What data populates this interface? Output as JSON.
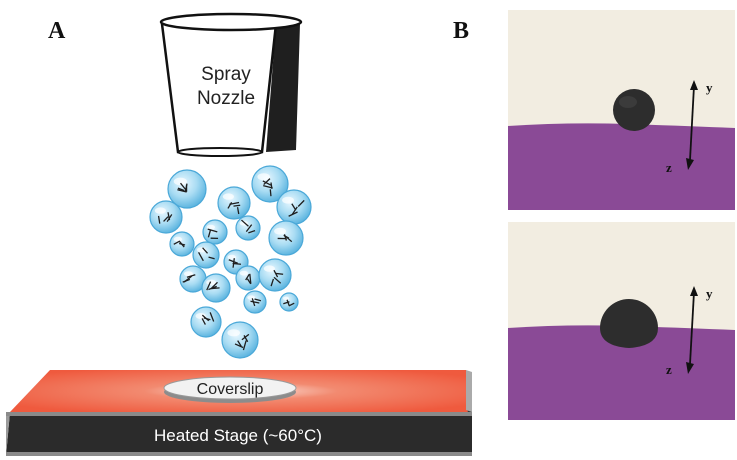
{
  "panels": {
    "a": {
      "label": "A"
    },
    "b": {
      "label": "B"
    }
  },
  "nozzle": {
    "line1": "Spray",
    "line2": "Nozzle"
  },
  "coverslip": {
    "label": "Coverslip"
  },
  "stage": {
    "label": "Heated Stage (~60°C)"
  },
  "axes": {
    "y": "y",
    "z": "z"
  },
  "colors": {
    "droplet": "#8fd0ee",
    "stage_hot": "#f06040",
    "stage_side": "#2b2b2b",
    "photo_wall": "#f1ece0",
    "photo_surface": "#8a4a96",
    "particle": "#2e2e2e"
  }
}
